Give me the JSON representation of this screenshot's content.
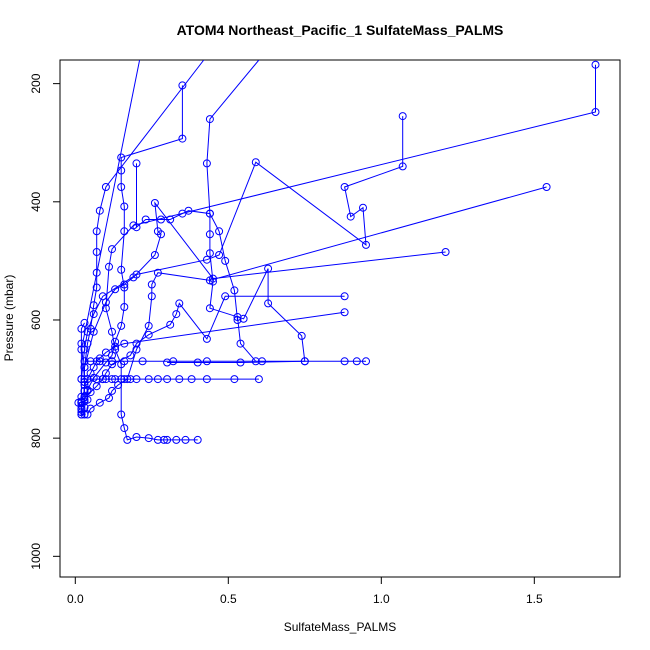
{
  "chart_data": {
    "type": "line",
    "title": "ATOM4 Northeast_Pacific_1 SulfateMass_PALMS",
    "xlabel": "SulfateMass_PALMS",
    "ylabel": "Pressure (mbar)",
    "xlim": [
      -0.05,
      1.78
    ],
    "ylim": [
      1035,
      160
    ],
    "y_reversed": true,
    "xticks": [
      0.0,
      0.5,
      1.0,
      1.5
    ],
    "xtick_labels": [
      "0.0",
      "0.5",
      "1.0",
      "1.5"
    ],
    "yticks": [
      200,
      400,
      600,
      800,
      1000
    ],
    "ytick_labels": [
      "200",
      "400",
      "600",
      "800",
      "1000"
    ],
    "grid": false,
    "legend": "none",
    "marker": "open-circle",
    "color": "#0000ff",
    "series": [
      {
        "x": [
          0.35,
          0.35,
          0.15,
          0.15,
          0.15,
          0.16,
          0.16,
          0.15,
          0.16,
          0.16,
          0.15,
          0.13,
          0.12,
          0.1,
          0.06,
          0.04,
          0.03,
          0.02,
          0.02
        ],
        "y": [
          203,
          293,
          325,
          347,
          375,
          408,
          450,
          515,
          545,
          578,
          610,
          637,
          660,
          672,
          698,
          718,
          735,
          750,
          760
        ]
      },
      {
        "x": [
          0.6,
          0.44,
          0.43,
          0.44,
          0.44,
          0.44,
          0.45,
          0.44,
          0.55,
          0.63,
          0.63,
          0.74,
          0.75,
          0.54,
          0.4,
          0.3
        ],
        "y": [
          160,
          260,
          335,
          420,
          455,
          487,
          535,
          580,
          598,
          513,
          572,
          627,
          670,
          672,
          672,
          672
        ]
      },
      {
        "x": [
          0.21,
          0.02,
          0.02,
          0.04,
          0.07,
          0.09,
          0.1,
          0.12,
          0.13,
          0.15,
          0.16,
          0.18,
          0.2,
          0.24,
          0.27,
          0.3,
          0.34,
          0.38,
          0.43,
          0.52,
          0.6
        ],
        "y": [
          160,
          650,
          700,
          700,
          700,
          700,
          700,
          700,
          700,
          700,
          700,
          700,
          700,
          700,
          700,
          700,
          700,
          700,
          700,
          700,
          700
        ]
      },
      {
        "x": [
          1.7,
          1.7,
          0.19,
          0.12,
          0.11,
          0.1,
          0.12,
          0.13,
          0.15,
          0.15,
          0.16,
          0.17,
          0.2,
          0.24,
          0.27,
          0.29,
          0.3,
          0.33,
          0.36,
          0.4
        ],
        "y": [
          168,
          248,
          440,
          480,
          510,
          580,
          620,
          650,
          675,
          760,
          783,
          803,
          798,
          800,
          803,
          803,
          803,
          803,
          803,
          803
        ]
      },
      {
        "x": [
          1.07,
          1.07,
          0.88,
          0.9,
          0.94,
          0.95,
          0.59,
          0.47,
          0.43,
          0.2,
          0.09,
          0.06,
          0.04,
          0.03,
          0.02,
          0.02
        ],
        "y": [
          255,
          340,
          375,
          425,
          410,
          473,
          333,
          490,
          498,
          523,
          560,
          590,
          620,
          650,
          700,
          740
        ]
      },
      {
        "x": [
          1.54,
          0.44,
          0.27,
          0.25,
          0.25,
          0.24,
          0.2,
          0.17,
          0.14,
          0.12,
          0.11,
          0.08,
          0.05,
          0.04
        ],
        "y": [
          375,
          533,
          520,
          540,
          560,
          610,
          650,
          700,
          710,
          720,
          732,
          740,
          750,
          760
        ]
      },
      {
        "x": [
          1.21,
          0.45,
          0.26,
          0.27,
          0.28,
          0.26,
          0.19,
          0.16,
          0.13,
          0.1,
          0.06,
          0.03
        ],
        "y": [
          485,
          530,
          402,
          450,
          455,
          490,
          528,
          540,
          548,
          570,
          620,
          680
        ]
      },
      {
        "x": [
          0.88,
          0.49,
          0.43,
          0.34,
          0.33,
          0.31,
          0.24,
          0.2,
          0.18,
          0.12,
          0.1,
          0.09,
          0.07,
          0.05,
          0.03
        ],
        "y": [
          560,
          560,
          632,
          572,
          590,
          608,
          625,
          640,
          660,
          675,
          690,
          700,
          712,
          722,
          730
        ]
      },
      {
        "x": [
          0.88,
          0.16,
          0.13,
          0.1,
          0.08,
          0.07,
          0.06,
          0.05,
          0.04,
          0.03,
          0.03,
          0.02,
          0.02
        ],
        "y": [
          587,
          640,
          645,
          655,
          665,
          670,
          680,
          690,
          700,
          710,
          720,
          730,
          740
        ]
      },
      {
        "x": [
          0.53,
          0.54,
          0.59,
          0.75,
          0.88,
          0.92,
          0.95,
          0.61,
          0.43,
          0.32,
          0.22,
          0.16,
          0.12,
          0.08,
          0.05,
          0.03
        ],
        "y": [
          595,
          640,
          670,
          670,
          670,
          670,
          670,
          670,
          670,
          670,
          670,
          670,
          670,
          670,
          670,
          670
        ]
      },
      {
        "x": [
          0.42,
          0.1,
          0.08,
          0.07,
          0.07,
          0.07,
          0.07,
          0.06,
          0.05,
          0.04,
          0.03,
          0.03,
          0.03,
          0.02
        ],
        "y": [
          160,
          375,
          415,
          450,
          485,
          520,
          545,
          575,
          615,
          640,
          680,
          705,
          720,
          740
        ]
      },
      {
        "x": [
          0.03,
          0.02,
          0.02,
          0.03,
          0.03,
          0.04,
          0.04,
          0.03,
          0.02,
          0.02,
          0.01,
          0.02,
          0.03,
          0.02,
          0.02,
          0.03,
          0.02
        ],
        "y": [
          605,
          615,
          640,
          700,
          705,
          720,
          735,
          738,
          738,
          740,
          740,
          745,
          748,
          752,
          756,
          760,
          760
        ]
      },
      {
        "x": [
          0.2,
          0.2,
          0.23,
          0.28,
          0.31,
          0.35,
          0.37,
          0.44,
          0.47,
          0.49,
          0.52,
          0.53
        ],
        "y": [
          335,
          443,
          430,
          430,
          430,
          420,
          415,
          420,
          450,
          500,
          550,
          600
        ]
      }
    ]
  }
}
